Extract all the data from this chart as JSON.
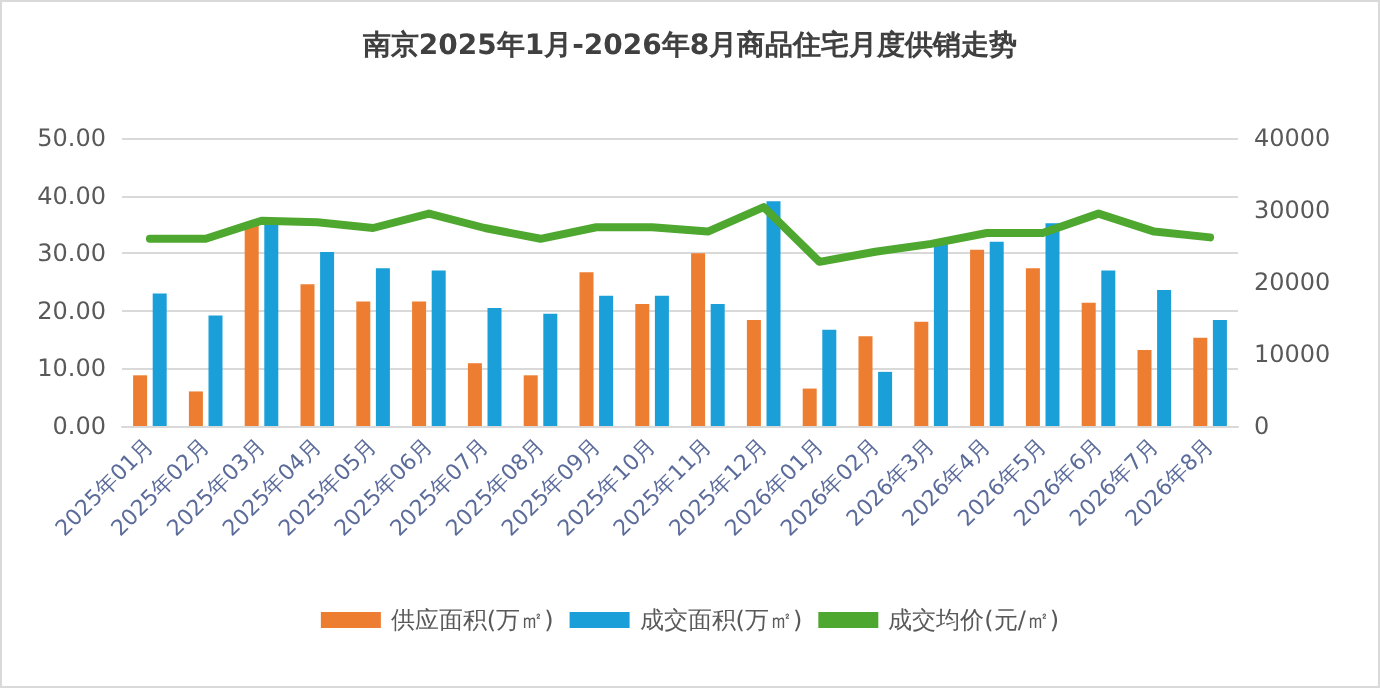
{
  "chart_data": {
    "type": "bar",
    "title": "南京2025年1月-2026年8月商品住宅月度供销走势",
    "categories": [
      "2025年01月",
      "2025年02月",
      "2025年03月",
      "2025年04月",
      "2025年05月",
      "2025年06月",
      "2025年07月",
      "2025年08月",
      "2025年09月",
      "2025年10月",
      "2025年11月",
      "2025年12月",
      "2026年01月",
      "2026年02月",
      "2026年3月",
      "2026年4月",
      "2026年5月",
      "2026年6月",
      "2026年7月",
      "2026年8月"
    ],
    "series": [
      {
        "name": "供应面积(万㎡)",
        "color": "#ed7d31",
        "values": [
          8.8,
          6.0,
          35.0,
          24.6,
          21.6,
          21.6,
          10.9,
          8.8,
          26.7,
          21.2,
          30.0,
          18.4,
          6.5,
          15.6,
          18.1,
          30.6,
          27.4,
          21.4,
          13.2,
          15.3
        ]
      },
      {
        "name": "成交面积(万㎡)",
        "color": "#1a9fd9",
        "values": [
          23.0,
          19.2,
          35.0,
          30.2,
          27.4,
          27.0,
          20.5,
          19.5,
          22.6,
          22.6,
          21.2,
          39.0,
          16.7,
          9.4,
          31.6,
          32.0,
          35.2,
          27.0,
          23.6,
          18.4
        ]
      },
      {
        "name": "成交均价(元/㎡)",
        "type": "line",
        "axis": "y2",
        "color": "#4ea72e",
        "values": [
          26000,
          26000,
          28500,
          28300,
          27500,
          29500,
          27500,
          26000,
          27600,
          27600,
          27000,
          30400,
          22800,
          24200,
          25300,
          26800,
          26800,
          29500,
          27000,
          26200
        ]
      }
    ],
    "ylim": [
      0,
      50
    ],
    "yticks": [
      {
        "value": 0,
        "label": "0.00"
      },
      {
        "value": 10,
        "label": "10.00"
      },
      {
        "value": 20,
        "label": "20.00"
      },
      {
        "value": 30,
        "label": "30.00"
      },
      {
        "value": 40,
        "label": "40.00"
      },
      {
        "value": 50,
        "label": "50.00"
      }
    ],
    "y2lim": [
      0,
      40000
    ],
    "y2ticks": [
      0,
      10000,
      20000,
      30000,
      40000
    ],
    "grid": "y",
    "legend": "bottom",
    "marker": "none",
    "line_style": "solid"
  }
}
